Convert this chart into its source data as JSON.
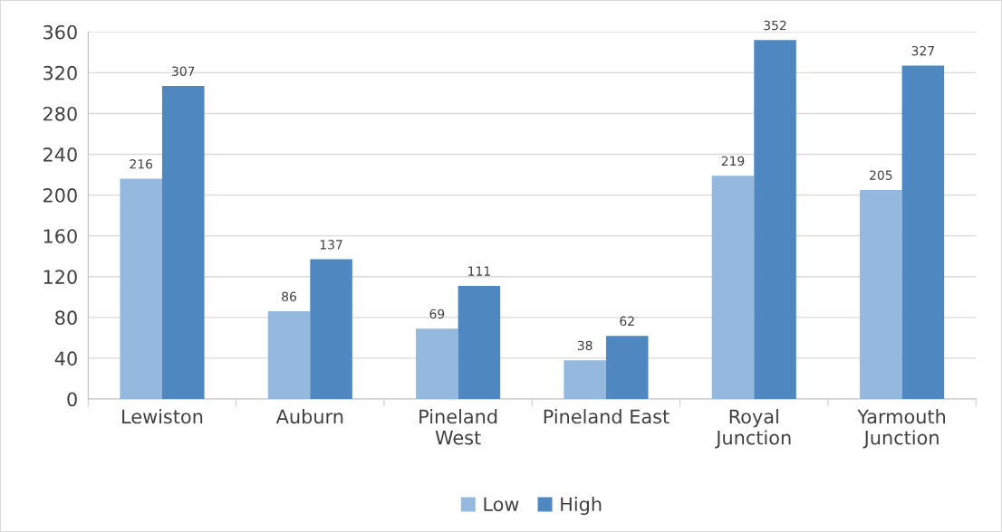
{
  "chart_data": {
    "type": "bar",
    "categories": [
      "Lewiston",
      "Auburn",
      "Pineland\nWest",
      "Pineland East",
      "Royal\nJunction",
      "Yarmouth\nJunction"
    ],
    "series": [
      {
        "name": "Low",
        "color": "#95b8de",
        "values": [
          216,
          86,
          69,
          38,
          219,
          205
        ]
      },
      {
        "name": "High",
        "color": "#4f88c0",
        "values": [
          307,
          137,
          111,
          62,
          352,
          327
        ]
      }
    ],
    "ylim": [
      0,
      360
    ],
    "yticks": [
      0,
      40,
      80,
      120,
      160,
      200,
      240,
      280,
      320,
      360
    ],
    "grid": "y",
    "legend": "bottom",
    "data_labels": true
  }
}
